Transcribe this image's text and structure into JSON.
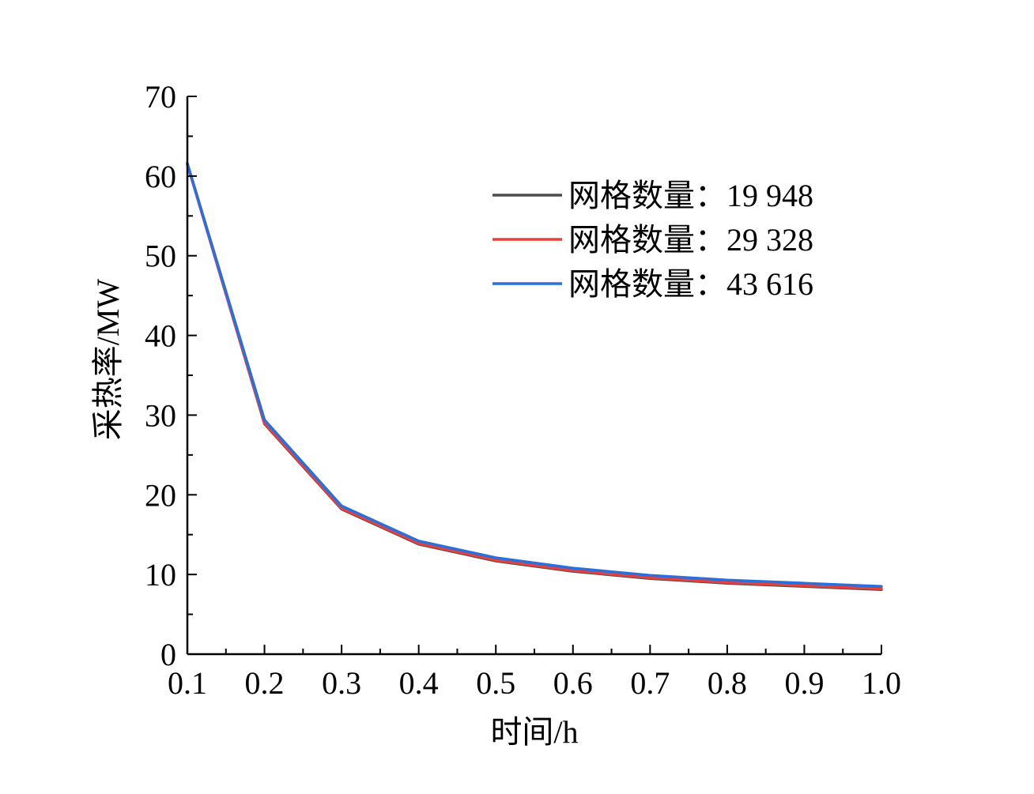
{
  "chart_data": {
    "type": "line",
    "title": "",
    "xlabel": "时间/h",
    "ylabel": "采热率/MW",
    "xlim": [
      0.1,
      1.0
    ],
    "ylim": [
      0,
      70
    ],
    "xticks": [
      "0.1",
      "0.2",
      "0.3",
      "0.4",
      "0.5",
      "0.6",
      "0.7",
      "0.8",
      "0.9",
      "1.0"
    ],
    "yticks": [
      "0",
      "10",
      "20",
      "30",
      "40",
      "50",
      "60",
      "70"
    ],
    "legend_position": "top-right",
    "grid": false,
    "x": [
      0.1,
      0.2,
      0.3,
      0.4,
      0.5,
      0.6,
      0.7,
      0.8,
      0.9,
      1.0
    ],
    "series": [
      {
        "name": "网格数量：19 948",
        "color": "#4d4d4d",
        "values": [
          61.5,
          28.9,
          18.2,
          13.8,
          11.7,
          10.4,
          9.5,
          8.9,
          8.5,
          8.1
        ]
      },
      {
        "name": "网格数量：29 328",
        "color": "#e8403a",
        "values": [
          61.5,
          29.0,
          18.3,
          13.9,
          11.8,
          10.5,
          9.6,
          9.0,
          8.6,
          8.2
        ]
      },
      {
        "name": "网格数量：43 616",
        "color": "#2a6fdb",
        "values": [
          61.6,
          29.4,
          18.6,
          14.2,
          12.1,
          10.8,
          9.9,
          9.3,
          8.9,
          8.5
        ]
      }
    ]
  }
}
